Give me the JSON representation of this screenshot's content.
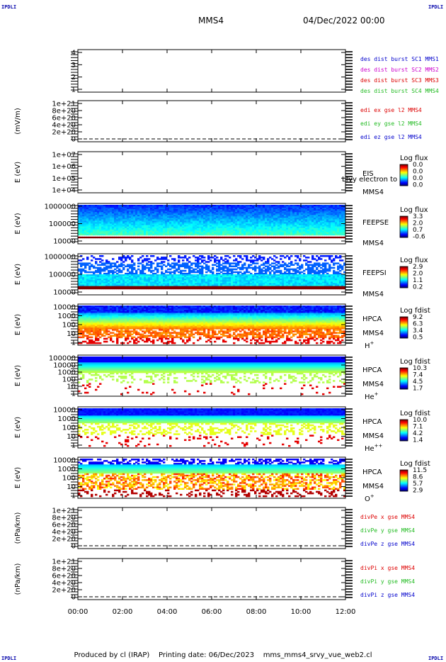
{
  "corners": {
    "tl": "IPDLI",
    "tr": "IPDLI",
    "bl": "IPDLI",
    "br": "IPDLI"
  },
  "header": {
    "spacecraft": "MMS4",
    "datetime": "04/Dec/2022 00:00"
  },
  "footer": {
    "text": "Produced by cl (IRAP)    Printing date: 06/Dec/2023    mms_mms4_srvy_vue_web2.cl"
  },
  "chart_data": [
    {
      "type": "line",
      "id": "p1",
      "ylabel": "",
      "yticks": [
        "1",
        "2",
        "3",
        "4"
      ],
      "ylim": [
        0.7,
        4.3
      ],
      "legend": [
        {
          "text": "des dist burst SC1 MMS1",
          "color": "#0000cc"
        },
        {
          "text": "des dist burst SC2 MMS2",
          "color": "#cc00cc"
        },
        {
          "text": "des dist burst SC3 MMS3",
          "color": "#dd0000"
        },
        {
          "text": "des dist burst SC4 MMS4",
          "color": "#22bb22"
        }
      ]
    },
    {
      "type": "line",
      "id": "p2",
      "ylabel": "(mV/m)",
      "yticks": [
        "0",
        "2e+20",
        "4e+20",
        "6e+20",
        "8e+20",
        "1e+21"
      ],
      "legend": [
        {
          "text": "edi ex gse l2 MMS4",
          "color": "#dd0000"
        },
        {
          "text": "edi ey gse l2 MMS4",
          "color": "#22bb22"
        },
        {
          "text": "edi ez gse l2 MMS4",
          "color": "#0000cc"
        }
      ],
      "zero_line": true
    },
    {
      "type": "heatmap",
      "id": "p3",
      "ylabel": "E (eV)",
      "yticks": [
        "1e+04",
        "1e+05",
        "1e+06",
        "1e+07"
      ],
      "instrument": "EIS",
      "sc": "MMS4",
      "overlay": "Lfvy electron to",
      "cbar_title": "Log flux",
      "cbar_ticks": [
        "0.0",
        "0.0",
        "0.0",
        "0.0"
      ],
      "empty": true
    },
    {
      "type": "heatmap",
      "id": "p4",
      "ylabel": "E (eV)",
      "yticks": [
        "10000",
        "100000",
        "1000000"
      ],
      "instrument": "FEEPSE",
      "sc": "MMS4",
      "cbar_title": "Log flux",
      "cbar_ticks": [
        "3.3",
        "2.0",
        "0.7",
        "-0.6"
      ]
    },
    {
      "type": "heatmap",
      "id": "p5",
      "ylabel": "E (eV)",
      "yticks": [
        "10000",
        "100000",
        "1000000"
      ],
      "instrument": "FEEPSI",
      "sc": "MMS4",
      "cbar_title": "Log flux",
      "cbar_ticks": [
        "2.9",
        "2.0",
        "1.1",
        "0.2"
      ]
    },
    {
      "type": "heatmap",
      "id": "p6",
      "ylabel": "E (eV)",
      "yticks": [
        "1",
        "10",
        "100",
        "1000",
        "10000"
      ],
      "instrument": "HPCA",
      "sc": "MMS4",
      "species": "H",
      "species_sup": "+",
      "cbar_title": "Log fdist",
      "cbar_ticks": [
        "9.2",
        "6.3",
        "3.4",
        "0.5"
      ]
    },
    {
      "type": "heatmap",
      "id": "p7",
      "ylabel": "E (eV)",
      "yticks": [
        "1",
        "10",
        "100",
        "1000",
        "10000",
        "100000"
      ],
      "instrument": "HPCA",
      "sc": "MMS4",
      "species": "He",
      "species_sup": "+",
      "cbar_title": "Log fdist",
      "cbar_ticks": [
        "10.3",
        "7.4",
        "4.5",
        "1.7"
      ]
    },
    {
      "type": "heatmap",
      "id": "p8",
      "ylabel": "E (eV)",
      "yticks": [
        "1",
        "10",
        "100",
        "1000",
        "10000"
      ],
      "instrument": "HPCA",
      "sc": "MMS4",
      "species": "He",
      "species_sup": "++",
      "cbar_title": "Log fdist",
      "cbar_ticks": [
        "10.0",
        "7.1",
        "4.2",
        "1.4"
      ]
    },
    {
      "type": "heatmap",
      "id": "p9",
      "ylabel": "E (eV)",
      "yticks": [
        "1",
        "10",
        "100",
        "1000",
        "10000"
      ],
      "instrument": "HPCA",
      "sc": "MMS4",
      "species": "O",
      "species_sup": "+",
      "cbar_title": "Log fdist",
      "cbar_ticks": [
        "11.5",
        "8.6",
        "5.7",
        "2.9"
      ]
    },
    {
      "type": "line",
      "id": "p10",
      "ylabel": "(nPa/km)",
      "yticks": [
        "0",
        "2e+20",
        "4e+20",
        "6e+20",
        "8e+20",
        "1e+21"
      ],
      "legend": [
        {
          "text": "divPe x gse MMS4",
          "color": "#dd0000"
        },
        {
          "text": "divPe y gse MMS4",
          "color": "#22bb22"
        },
        {
          "text": "divPe z gse MMS4",
          "color": "#0000cc"
        }
      ],
      "zero_line": true
    },
    {
      "type": "line",
      "id": "p11",
      "ylabel": "(nPa/km)",
      "yticks": [
        "0",
        "2e+20",
        "4e+20",
        "6e+20",
        "8e+20",
        "1e+21"
      ],
      "legend": [
        {
          "text": "divPi x gse MMS4",
          "color": "#dd0000"
        },
        {
          "text": "divPi y gse MMS4",
          "color": "#22bb22"
        },
        {
          "text": "divPi z gse MMS4",
          "color": "#0000cc"
        }
      ],
      "zero_line": true
    }
  ],
  "xaxis": {
    "ticks": [
      "00:00",
      "02:00",
      "04:00",
      "06:00",
      "08:00",
      "10:00",
      "12:00"
    ]
  }
}
